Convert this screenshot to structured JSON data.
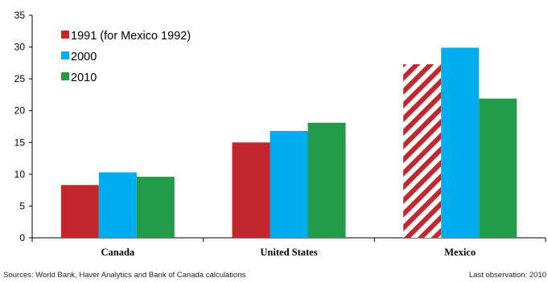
{
  "chart_data": {
    "type": "bar",
    "categories": [
      "Canada",
      "United States",
      "Mexico"
    ],
    "series": [
      {
        "name": "1991 (for Mexico 1992)",
        "color": "#c1272d",
        "values": [
          8.3,
          15.0,
          27.3
        ],
        "hatched_category": "Mexico"
      },
      {
        "name": "2000",
        "color": "#00aeef",
        "values": [
          10.3,
          16.8,
          29.9
        ]
      },
      {
        "name": "2010",
        "color": "#239b48",
        "values": [
          9.6,
          18.1,
          21.9
        ]
      }
    ],
    "y_ticks": [
      0,
      5,
      10,
      15,
      20,
      25,
      30,
      35
    ],
    "ylim": [
      0,
      35
    ],
    "grid": false,
    "legend_position": "top-left",
    "title": "",
    "xlabel": "",
    "ylabel": ""
  },
  "notes": {
    "source": "Sources: World Bank, Haver Analytics and Bank of Canada calculations",
    "last_observation": "Last observation: 2010"
  }
}
